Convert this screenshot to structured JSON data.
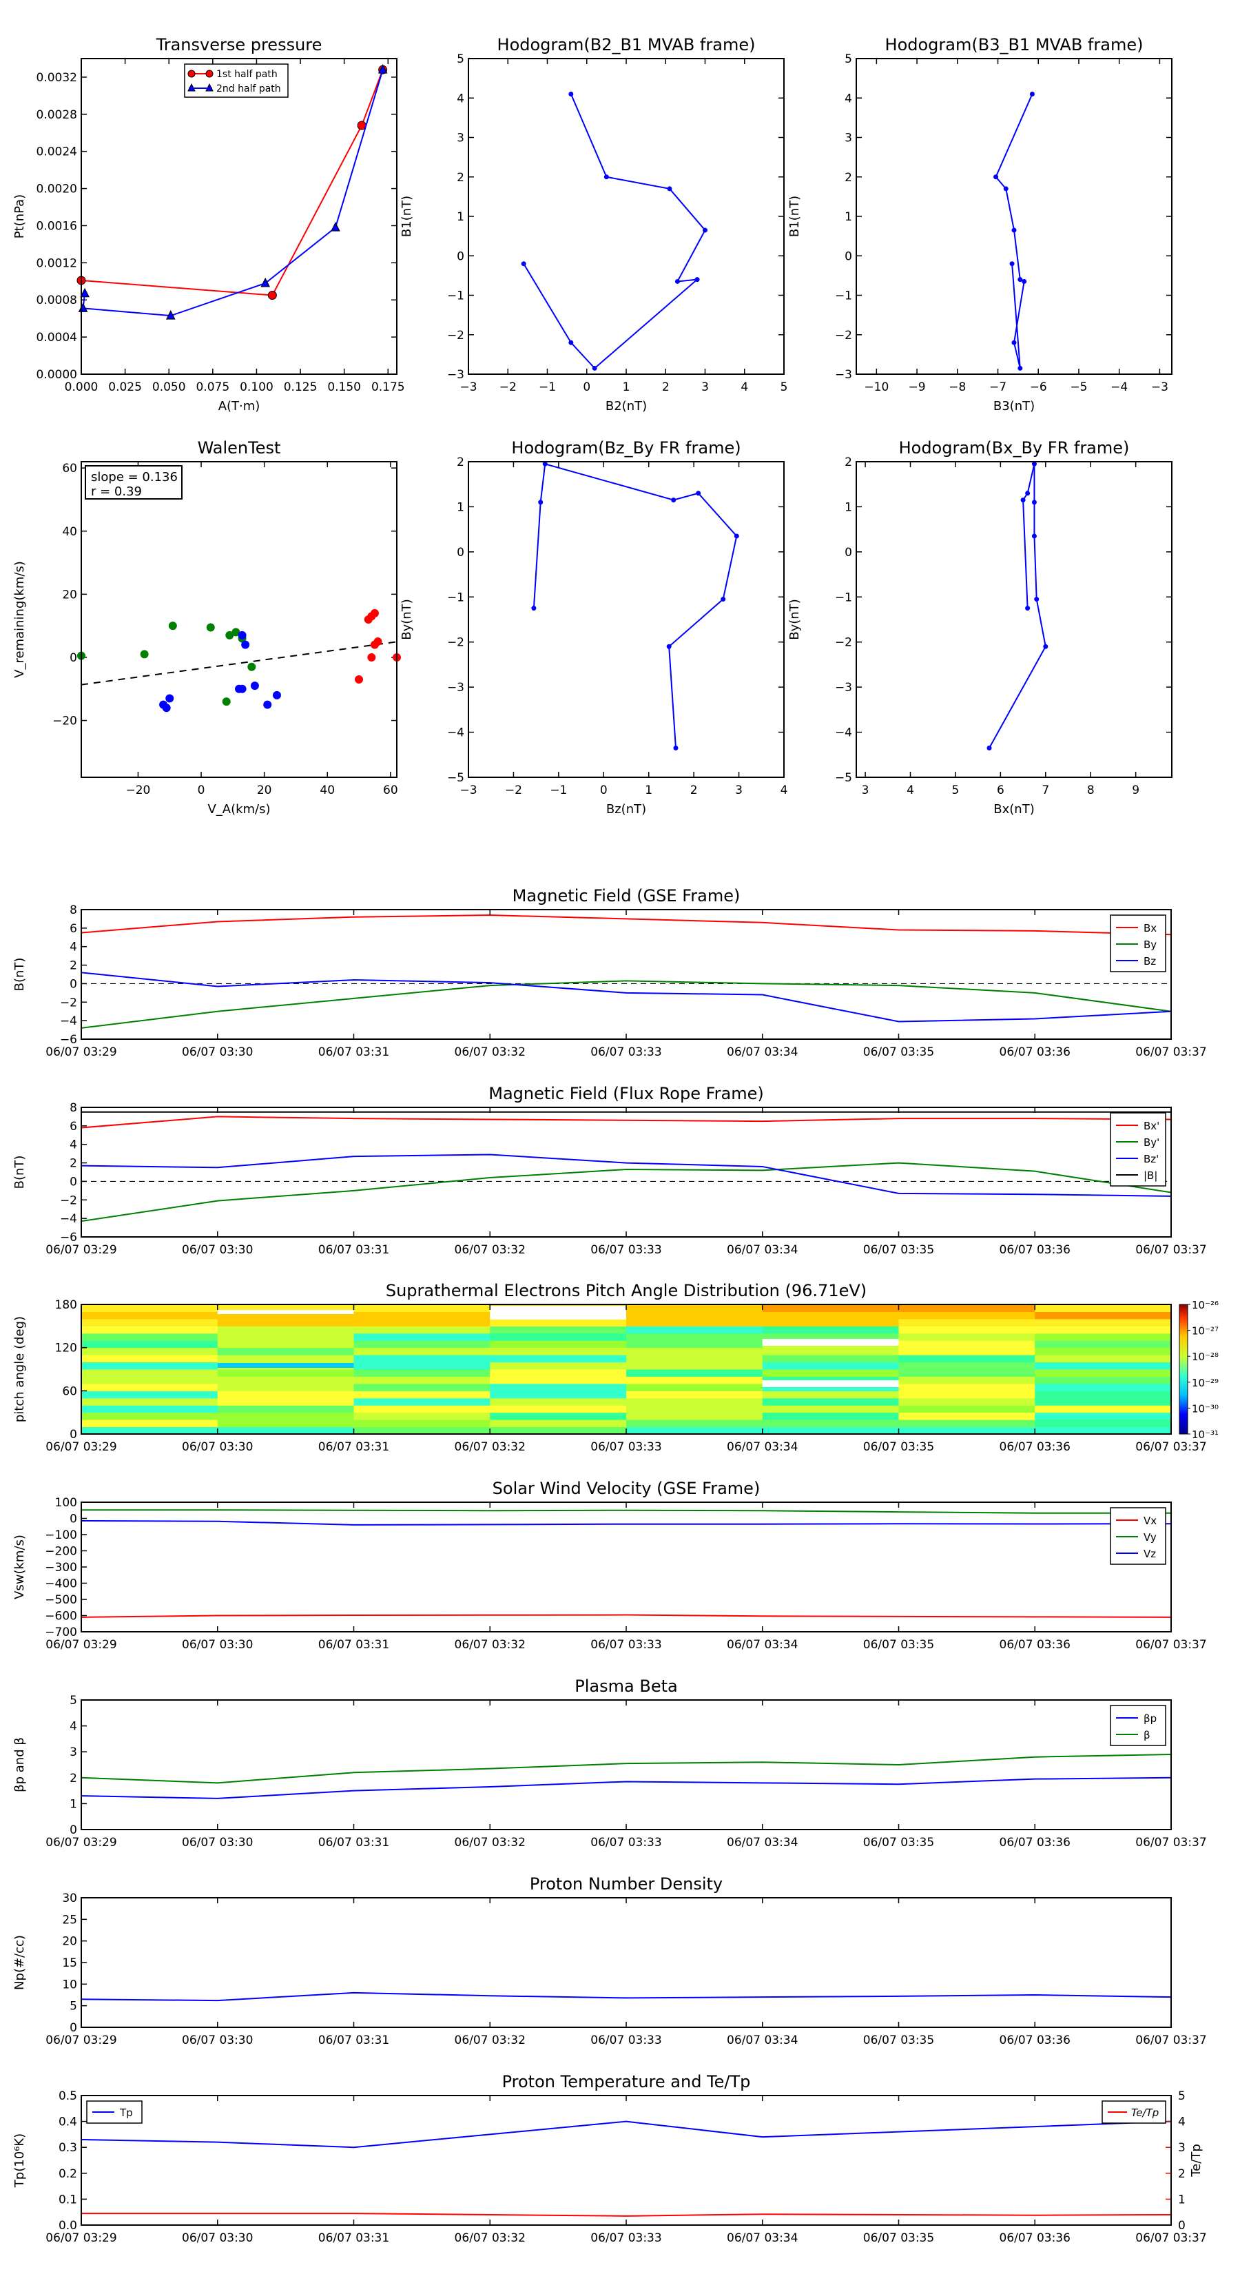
{
  "chart_data": [
    {
      "id": "tp",
      "type": "line",
      "title": "Transverse pressure",
      "xlabel": "A(T·m)",
      "ylabel": "Pt(nPa)",
      "xlim": [
        0,
        0.18
      ],
      "ylim": [
        0,
        0.0034
      ],
      "xticks": [
        "0.000",
        "0.025",
        "0.050",
        "0.075",
        "0.100",
        "0.125",
        "0.150",
        "0.175"
      ],
      "yticks": [
        "0.0000",
        "0.0004",
        "0.0008",
        "0.0012",
        "0.0016",
        "0.0020",
        "0.0024",
        "0.0028",
        "0.0032"
      ],
      "legend": "top-center",
      "series": [
        {
          "name": "1st half path",
          "color": "#ff0000",
          "marker": "circle",
          "x": [
            0.172,
            0.16,
            0.109,
            0.0
          ],
          "y": [
            0.00328,
            0.00268,
            0.00085,
            0.00101
          ]
        },
        {
          "name": "2nd half path",
          "color": "#0000ff",
          "marker": "triangle",
          "x": [
            0.172,
            0.145,
            0.105,
            0.051,
            0.001,
            0.002
          ],
          "y": [
            0.00328,
            0.00158,
            0.00098,
            0.00063,
            0.00071,
            0.00087
          ]
        }
      ]
    },
    {
      "id": "h1",
      "type": "line",
      "title": "Hodogram(B2_B1 MVAB frame)",
      "xlabel": "B2(nT)",
      "ylabel": "B1(nT)",
      "xlim": [
        -3,
        5
      ],
      "ylim": [
        -3,
        5
      ],
      "xticks": [
        "−3",
        "−2",
        "−1",
        "0",
        "1",
        "2",
        "3",
        "4",
        "5"
      ],
      "yticks": [
        "−3",
        "−2",
        "−1",
        "0",
        "1",
        "2",
        "3",
        "4",
        "5"
      ],
      "series": [
        {
          "color": "#0000ff",
          "x": [
            -0.4,
            0.5,
            2.1,
            3.0,
            2.3,
            2.8,
            0.2,
            -0.4,
            -1.6
          ],
          "y": [
            4.1,
            2.0,
            1.7,
            0.65,
            -0.65,
            -0.6,
            -2.85,
            -2.2,
            -0.2
          ]
        }
      ]
    },
    {
      "id": "h2",
      "type": "line",
      "title": "Hodogram(B3_B1 MVAB frame)",
      "xlabel": "B3(nT)",
      "ylabel": "B1(nT)",
      "xlim": [
        -10.5,
        -2.7
      ],
      "ylim": [
        -3,
        5
      ],
      "xticks": [
        "−10",
        "−9",
        "−8",
        "−7",
        "−6",
        "−5",
        "−4",
        "−3"
      ],
      "yticks": [
        "−3",
        "−2",
        "−1",
        "0",
        "1",
        "2",
        "3",
        "4",
        "5"
      ],
      "series": [
        {
          "color": "#0000ff",
          "x": [
            -6.15,
            -7.05,
            -6.8,
            -6.6,
            -6.45,
            -6.35,
            -6.6,
            -6.45,
            -6.65
          ],
          "y": [
            4.1,
            2.0,
            1.7,
            0.65,
            -0.6,
            -0.65,
            -2.2,
            -2.85,
            -0.2
          ]
        }
      ]
    },
    {
      "id": "walen",
      "type": "scatter",
      "title": "WalenTest",
      "xlabel": "V_A(km/s)",
      "ylabel": "V_remaining(km/s)",
      "xlim": [
        -38,
        62
      ],
      "ylim": [
        -38,
        62
      ],
      "xticks": [
        "−20",
        "0",
        "20",
        "40",
        "60"
      ],
      "yticks": [
        "−20",
        "0",
        "20",
        "40",
        "60"
      ],
      "annotation": [
        "slope = 0.136",
        "r = 0.39"
      ],
      "fit": {
        "slope": 0.136,
        "intercept": -3.5
      },
      "series": [
        {
          "color": "#008000",
          "x": [
            -38,
            -18,
            -9,
            3,
            9,
            11,
            13,
            16,
            8
          ],
          "y": [
            0.5,
            1,
            10,
            9.5,
            7,
            8,
            6,
            -3,
            -14
          ]
        },
        {
          "color": "#0000ff",
          "x": [
            -12,
            -11,
            -10,
            12,
            13,
            17,
            21,
            24,
            13,
            14
          ],
          "y": [
            -15,
            -16,
            -13,
            -10,
            7,
            -9,
            -15,
            -12,
            -10,
            4
          ]
        },
        {
          "color": "#ff0000",
          "x": [
            50,
            53,
            54,
            55,
            56,
            55,
            54,
            62
          ],
          "y": [
            -7,
            12,
            13,
            14,
            5,
            4,
            0,
            0
          ]
        }
      ]
    },
    {
      "id": "h3",
      "type": "line",
      "title": "Hodogram(Bz_By FR frame)",
      "xlabel": "Bz(nT)",
      "ylabel": "By(nT)",
      "xlim": [
        -3,
        4
      ],
      "ylim": [
        -5,
        2
      ],
      "xticks": [
        "−3",
        "−2",
        "−1",
        "0",
        "1",
        "2",
        "3",
        "4"
      ],
      "yticks": [
        "−5",
        "−4",
        "−3",
        "−2",
        "−1",
        "0",
        "1",
        "2"
      ],
      "series": [
        {
          "color": "#0000ff",
          "x": [
            1.6,
            1.45,
            2.65,
            2.95,
            2.1,
            1.55,
            -1.3,
            -1.4,
            -1.55
          ],
          "y": [
            -4.35,
            -2.1,
            -1.05,
            0.35,
            1.3,
            1.15,
            1.95,
            1.1,
            -1.25
          ]
        }
      ]
    },
    {
      "id": "h4",
      "type": "line",
      "title": "Hodogram(Bx_By FR frame)",
      "xlabel": "Bx(nT)",
      "ylabel": "By(nT)",
      "xlim": [
        2.8,
        9.8
      ],
      "ylim": [
        -5,
        2
      ],
      "xticks": [
        "3",
        "4",
        "5",
        "6",
        "7",
        "8",
        "9"
      ],
      "yticks": [
        "−5",
        "−4",
        "−3",
        "−2",
        "−1",
        "0",
        "1",
        "2"
      ],
      "series": [
        {
          "color": "#0000ff",
          "x": [
            5.75,
            7.0,
            6.8,
            6.75,
            6.75,
            6.75,
            6.6,
            6.5,
            6.6
          ],
          "y": [
            -4.35,
            -2.1,
            -1.05,
            0.35,
            1.1,
            1.95,
            1.3,
            1.15,
            -1.25
          ]
        }
      ]
    },
    {
      "id": "mag_gse",
      "type": "line",
      "title": "Magnetic Field (GSE Frame)",
      "ylabel": "B(nT)",
      "ylim": [
        -6,
        8
      ],
      "yticks": [
        "−6",
        "−4",
        "−2",
        "0",
        "2",
        "4",
        "6",
        "8"
      ],
      "zero_line": true,
      "legend": "top-right",
      "series": [
        {
          "name": "Bx",
          "color": "#ff0000",
          "values": [
            5.5,
            6.7,
            7.2,
            7.4,
            7.0,
            6.6,
            5.8,
            5.7,
            5.3
          ]
        },
        {
          "name": "By",
          "color": "#008000",
          "values": [
            -4.8,
            -3.0,
            -1.6,
            -0.2,
            0.3,
            0.0,
            -0.2,
            -1.0,
            -3.0
          ]
        },
        {
          "name": "Bz",
          "color": "#0000ff",
          "values": [
            1.2,
            -0.3,
            0.4,
            0.1,
            -1.0,
            -1.2,
            -4.1,
            -3.8,
            -3.0
          ]
        }
      ]
    },
    {
      "id": "mag_fr",
      "type": "line",
      "title": "Magnetic Field (Flux Rope Frame)",
      "ylabel": "B(nT)",
      "ylim": [
        -6,
        8
      ],
      "yticks": [
        "−6",
        "−4",
        "−2",
        "0",
        "2",
        "4",
        "6",
        "8"
      ],
      "zero_line": true,
      "legend": "top-right",
      "series": [
        {
          "name": "Bx'",
          "color": "#ff0000",
          "values": [
            5.8,
            7.0,
            6.8,
            6.7,
            6.6,
            6.5,
            6.8,
            6.8,
            6.7
          ]
        },
        {
          "name": "By'",
          "color": "#008000",
          "values": [
            -4.3,
            -2.1,
            -1.0,
            0.4,
            1.3,
            1.2,
            2.0,
            1.1,
            -1.2
          ]
        },
        {
          "name": "Bz'",
          "color": "#0000ff",
          "values": [
            1.7,
            1.5,
            2.7,
            2.9,
            2.0,
            1.6,
            -1.3,
            -1.4,
            -1.6
          ]
        },
        {
          "name": "|B|",
          "color": "#000000",
          "values": [
            7.5,
            7.5,
            7.5,
            7.5,
            7.5,
            7.5,
            7.5,
            7.5,
            7.5
          ]
        }
      ]
    },
    {
      "id": "pad",
      "type": "heatmap",
      "title": "Suprathermal Electrons Pitch Angle Distribution (96.71eV)",
      "ylabel": "pitch angle (deg)",
      "ylim": [
        0,
        180
      ],
      "yticks": [
        "0",
        "60",
        "120",
        "180"
      ],
      "colorbar_ticks": [
        "10⁻²⁶",
        "10⁻²⁷",
        "10⁻²⁸",
        "10⁻²⁹",
        "10⁻³⁰",
        "10⁻³¹"
      ],
      "colorbar_range_log": [
        -31,
        -26
      ]
    },
    {
      "id": "vsw",
      "type": "line",
      "title": "Solar Wind Velocity (GSE Frame)",
      "ylabel": "Vsw(km/s)",
      "ylim": [
        -700,
        100
      ],
      "yticks": [
        "−700",
        "−600",
        "−500",
        "−400",
        "−300",
        "−200",
        "−100",
        "0",
        "100"
      ],
      "legend": "top-right",
      "series": [
        {
          "name": "Vx",
          "color": "#ff0000",
          "values": [
            -610,
            -600,
            -598,
            -597,
            -596,
            -603,
            -606,
            -608,
            -610
          ]
        },
        {
          "name": "Vy",
          "color": "#008000",
          "values": [
            52,
            52,
            50,
            48,
            50,
            48,
            40,
            33,
            33
          ]
        },
        {
          "name": "Vz",
          "color": "#0000ff",
          "values": [
            -15,
            -18,
            -40,
            -38,
            -35,
            -35,
            -33,
            -34,
            -33
          ]
        }
      ]
    },
    {
      "id": "beta",
      "type": "line",
      "title": "Plasma Beta",
      "ylabel": "βp and β",
      "ylim": [
        0,
        5
      ],
      "yticks": [
        "0",
        "1",
        "2",
        "3",
        "4",
        "5"
      ],
      "legend": "top-right",
      "series": [
        {
          "name": "βp",
          "color": "#0000ff",
          "values": [
            1.3,
            1.2,
            1.5,
            1.65,
            1.85,
            1.8,
            1.75,
            1.95,
            2.0
          ]
        },
        {
          "name": "β",
          "color": "#008000",
          "values": [
            2.0,
            1.8,
            2.2,
            2.35,
            2.55,
            2.6,
            2.5,
            2.8,
            2.9
          ]
        }
      ]
    },
    {
      "id": "np",
      "type": "line",
      "title": "Proton Number Density",
      "ylabel": "Np(#/cc)",
      "ylim": [
        0,
        30
      ],
      "yticks": [
        "0",
        "5",
        "10",
        "15",
        "20",
        "25",
        "30"
      ],
      "series": [
        {
          "color": "#0000ff",
          "values": [
            6.5,
            6.2,
            8.0,
            7.3,
            6.8,
            7.0,
            7.2,
            7.5,
            7.0
          ]
        }
      ]
    },
    {
      "id": "temp",
      "type": "line",
      "title": "Proton Temperature and Te/Tp",
      "ylabel": "Tp(10⁶K)",
      "ylabel_right": "Te/Tp",
      "ylim": [
        0,
        0.5
      ],
      "ylim_right": [
        0,
        5
      ],
      "yticks": [
        "0.0",
        "0.1",
        "0.2",
        "0.3",
        "0.4",
        "0.5"
      ],
      "yticks_right": [
        "0",
        "1",
        "2",
        "3",
        "4",
        "5"
      ],
      "series": [
        {
          "name": "Tp",
          "color": "#0000ff",
          "axis": "left",
          "values": [
            0.33,
            0.32,
            0.3,
            0.35,
            0.4,
            0.34,
            0.36,
            0.38,
            0.4
          ]
        },
        {
          "name": "Te/Tp",
          "color": "#ff0000",
          "axis": "right",
          "values": [
            0.45,
            0.45,
            0.45,
            0.4,
            0.35,
            0.42,
            0.4,
            0.38,
            0.4
          ]
        }
      ]
    }
  ],
  "time_ticks": [
    "06/07 03:29",
    "06/07 03:30",
    "06/07 03:31",
    "06/07 03:32",
    "06/07 03:33",
    "06/07 03:34",
    "06/07 03:35",
    "06/07 03:36",
    "06/07 03:37"
  ]
}
